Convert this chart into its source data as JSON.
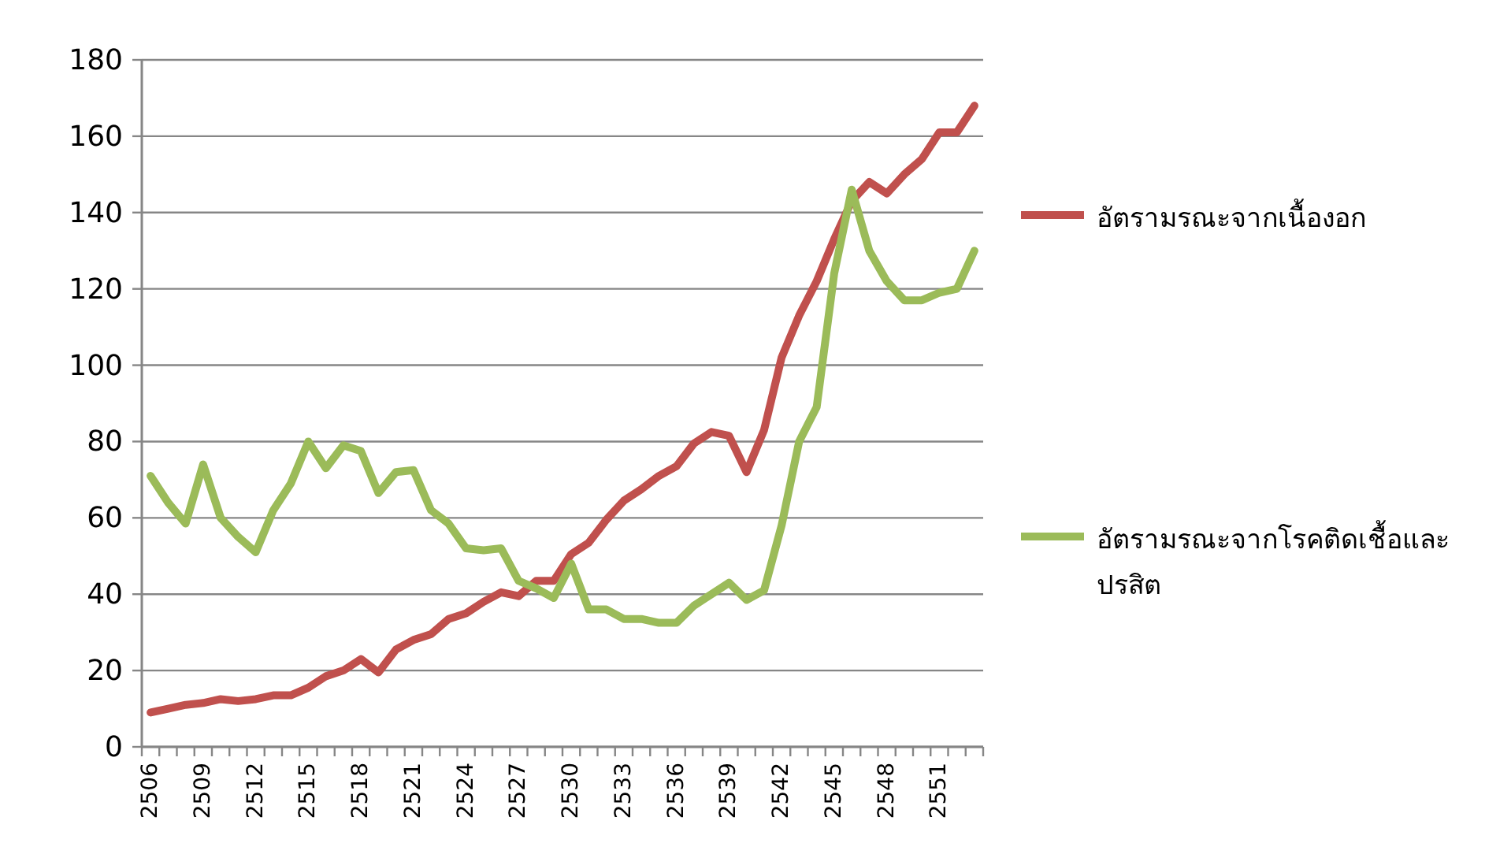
{
  "chart_data": {
    "type": "line",
    "categories": [
      "2506",
      null,
      null,
      "2509",
      null,
      null,
      "2512",
      null,
      null,
      "2515",
      null,
      null,
      "2518",
      null,
      null,
      "2521",
      null,
      null,
      "2524",
      null,
      null,
      "2527",
      null,
      null,
      "2530",
      null,
      null,
      "2533",
      null,
      null,
      "2536",
      null,
      null,
      "2539",
      null,
      null,
      "2542",
      null,
      null,
      "2545",
      null,
      null,
      "2548",
      null,
      null,
      "2551",
      null,
      null
    ],
    "series": [
      {
        "name": "อัตรามรณะจากเนื้องอก",
        "color": "#c0504d",
        "values": [
          9,
          10,
          11,
          11.5,
          12.5,
          12,
          12.5,
          13.5,
          13.5,
          15.5,
          18.5,
          20,
          23,
          19.5,
          25.5,
          28,
          29.5,
          33.5,
          35,
          38,
          40.5,
          39.5,
          43.5,
          43.5,
          50.5,
          53.5,
          59.5,
          64.5,
          67.5,
          71,
          73.5,
          79.5,
          82.5,
          81.5,
          72,
          83,
          102,
          113,
          122,
          133,
          143,
          148,
          145,
          150,
          154,
          161,
          161,
          168
        ]
      },
      {
        "name": "อัตรามรณะจากโรคติดเชื้อและปรสิต",
        "color": "#9bbb59",
        "values": [
          71,
          64,
          58.5,
          74,
          60,
          55,
          51,
          62,
          69,
          80,
          73,
          79,
          77.5,
          66.5,
          72,
          72.5,
          62,
          58.5,
          52,
          51.5,
          52,
          43.5,
          41.5,
          39,
          48,
          36,
          36,
          33.5,
          33.5,
          32.5,
          32.5,
          37,
          40,
          43,
          38.5,
          41,
          58,
          80,
          89,
          124,
          146,
          130,
          122,
          117,
          117,
          119,
          120,
          130
        ]
      }
    ],
    "ylim": [
      0,
      180
    ],
    "yticks": [
      0,
      20,
      40,
      60,
      80,
      100,
      120,
      140,
      160,
      180
    ],
    "grid": "y",
    "legend": "right",
    "marker": "none",
    "line_style": "solid"
  }
}
